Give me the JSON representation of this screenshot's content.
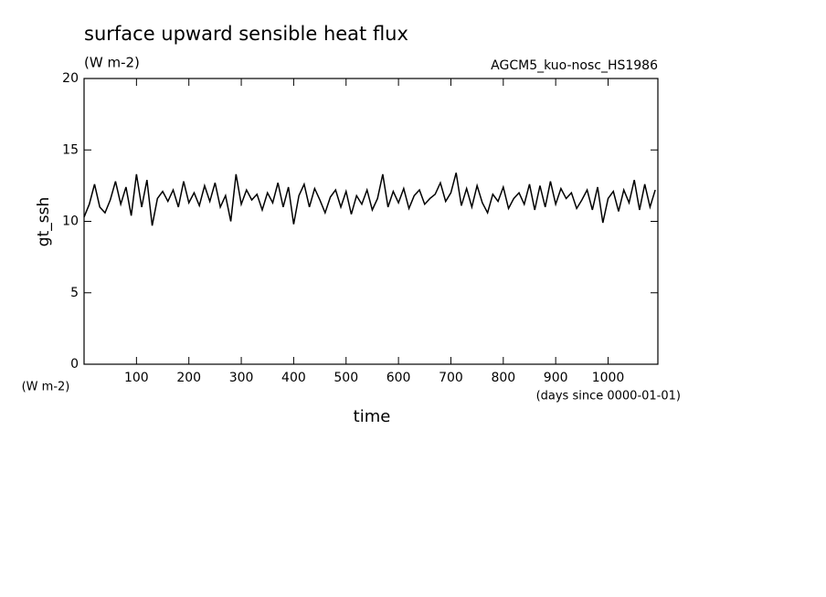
{
  "chart_data": {
    "type": "line",
    "title": "surface upward sensible heat flux",
    "subtitle": "(W m-2)",
    "annotation": "AGCM5_kuo-nosc_HS1986",
    "ylabel": "gt_ssh",
    "y_units": "(W m-2)",
    "xlabel": "time",
    "x_units": "(days since 0000-01-01)",
    "color": "#000000",
    "xlim": [
      0,
      1095
    ],
    "ylim": [
      0,
      20
    ],
    "xticks": [
      100,
      200,
      300,
      400,
      500,
      600,
      700,
      800,
      900,
      1000
    ],
    "yticks": [
      0,
      5,
      10,
      15,
      20
    ],
    "x": [
      0,
      10,
      20,
      30,
      40,
      50,
      60,
      70,
      80,
      90,
      100,
      110,
      120,
      130,
      140,
      150,
      160,
      170,
      180,
      190,
      200,
      210,
      220,
      230,
      240,
      250,
      260,
      270,
      280,
      290,
      300,
      310,
      320,
      330,
      340,
      350,
      360,
      370,
      380,
      390,
      400,
      410,
      420,
      430,
      440,
      450,
      460,
      470,
      480,
      490,
      500,
      510,
      520,
      530,
      540,
      550,
      560,
      570,
      580,
      590,
      600,
      610,
      620,
      630,
      640,
      650,
      660,
      670,
      680,
      690,
      700,
      710,
      720,
      730,
      740,
      750,
      760,
      770,
      780,
      790,
      800,
      810,
      820,
      830,
      840,
      850,
      860,
      870,
      880,
      890,
      900,
      910,
      920,
      930,
      940,
      950,
      960,
      970,
      980,
      990,
      1000,
      1010,
      1020,
      1030,
      1040,
      1050,
      1060,
      1070,
      1080,
      1090
    ],
    "values": [
      10.3,
      11.2,
      12.6,
      11.0,
      10.6,
      11.5,
      12.8,
      11.2,
      12.4,
      10.4,
      13.3,
      11.0,
      12.9,
      9.7,
      11.6,
      12.1,
      11.4,
      12.2,
      11.0,
      12.8,
      11.3,
      12.0,
      11.1,
      12.5,
      11.4,
      12.7,
      11.0,
      11.8,
      10.0,
      13.3,
      11.2,
      12.2,
      11.5,
      11.9,
      10.8,
      12.0,
      11.3,
      12.7,
      11.0,
      12.4,
      9.8,
      11.8,
      12.6,
      11.0,
      12.3,
      11.5,
      10.6,
      11.7,
      12.2,
      11.0,
      12.1,
      10.5,
      11.8,
      11.2,
      12.2,
      10.8,
      11.6,
      13.3,
      11.0,
      12.1,
      11.3,
      12.3,
      10.9,
      11.8,
      12.2,
      11.2,
      11.6,
      11.9,
      12.7,
      11.4,
      12.0,
      13.4,
      11.1,
      12.3,
      11.0,
      12.5,
      11.3,
      10.6,
      11.9,
      11.4,
      12.4,
      10.9,
      11.6,
      12.0,
      11.2,
      12.6,
      10.8,
      12.5,
      11.0,
      12.8,
      11.2,
      12.3,
      11.6,
      12.0,
      10.9,
      11.5,
      12.2,
      10.8,
      12.4,
      9.9,
      11.6,
      12.1,
      10.7,
      12.2,
      11.3,
      12.9,
      10.8,
      12.6,
      11.0,
      12.2
    ]
  }
}
